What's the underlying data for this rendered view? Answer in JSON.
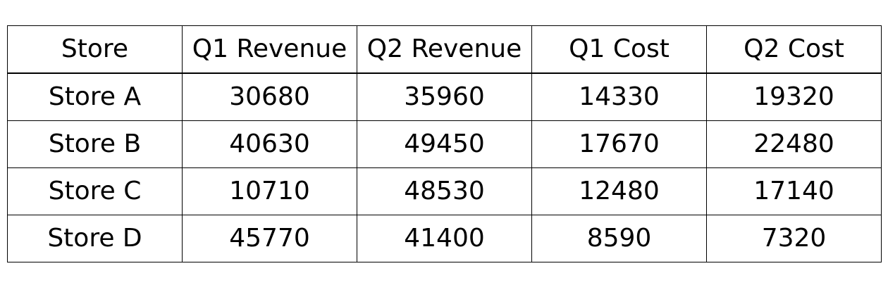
{
  "chart_data": {
    "type": "table",
    "columns": [
      "Store",
      "Q1 Revenue",
      "Q2 Revenue",
      "Q1 Cost",
      "Q2 Cost"
    ],
    "rows": [
      [
        "Store A",
        "30680",
        "35960",
        "14330",
        "19320"
      ],
      [
        "Store B",
        "40630",
        "49450",
        "17670",
        "22480"
      ],
      [
        "Store C",
        "10710",
        "48530",
        "12480",
        "17140"
      ],
      [
        "Store D",
        "45770",
        "41400",
        "8590",
        "7320"
      ]
    ]
  }
}
